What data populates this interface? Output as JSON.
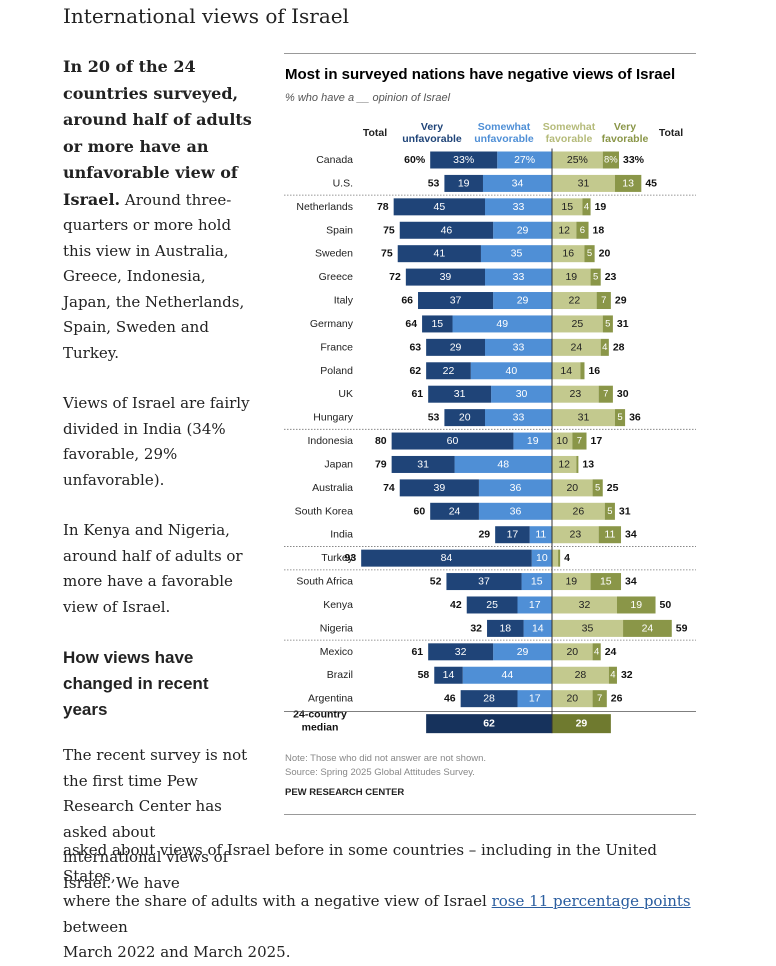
{
  "page": {
    "section_title": "International views of Israel",
    "intro_bold": "In 20 of the 24 countries surveyed, around half of adults or more have an unfavorable view of Israel.",
    "intro_rest": " Around three-quarters or more hold this view in Australia, Greece, Indonesia, Japan, the Netherlands, Spain, Sweden and Turkey.",
    "para_india": "Views of Israel are fairly divided in India (34% favorable, 29% unfavorable).",
    "para_kenya": "In Kenya and Nigeria, around half of adults or more have a favorable view of Israel.",
    "subheading": "How views have changed in recent years",
    "para_recent": "The recent survey is not the first time Pew Research Center has asked about international views of Israel. We have",
    "bottom_line1": "asked about views of Israel before in some countries – including in the United States,",
    "bottom_line2_pre": "where the share of adults with a negative view of Israel ",
    "bottom_link": "rose 11 percentage points",
    "bottom_line2_post": " between",
    "bottom_line3": "March 2022 and March 2025."
  },
  "chart_header": {
    "total_left": "Total",
    "very_unfav": "Very unfavorable",
    "somewhat_unfav": "Somewhat unfavorable",
    "somewhat_fav": "Somewhat favorable",
    "very_fav": "Very favorable",
    "total_right": "Total"
  },
  "chart_notes": {
    "note": "Note: Those who did not answer are not shown.",
    "source": "Source: Spring 2025 Global Attitudes Survey.",
    "brand": "PEW RESEARCH CENTER"
  },
  "chart_data": {
    "type": "bar",
    "orientation": "horizontal-diverging",
    "title": "Most in surveyed nations have negative views of Israel",
    "subtitle": "% who have a __ opinion of Israel",
    "colors": {
      "very_unfavorable": "#1f4478",
      "somewhat_unfavorable": "#4f8fd6",
      "somewhat_favorable": "#c3c98e",
      "very_favorable": "#8a9648",
      "median_unfav": "#16325c",
      "median_fav": "#6f7a2f"
    },
    "rows": [
      {
        "country": "Canada",
        "very_unfav": 33,
        "somewhat_unfav": 27,
        "total_unfav": 60,
        "somewhat_fav": 25,
        "very_fav": 8,
        "total_fav": 33,
        "pct": true
      },
      {
        "country": "U.S.",
        "very_unfav": 19,
        "somewhat_unfav": 34,
        "total_unfav": 53,
        "somewhat_fav": 31,
        "very_fav": 13,
        "total_fav": 45
      },
      {
        "country": "Netherlands",
        "very_unfav": 45,
        "somewhat_unfav": 33,
        "total_unfav": 78,
        "somewhat_fav": 15,
        "very_fav": 4,
        "total_fav": 19
      },
      {
        "country": "Spain",
        "very_unfav": 46,
        "somewhat_unfav": 29,
        "total_unfav": 75,
        "somewhat_fav": 12,
        "very_fav": 6,
        "total_fav": 18
      },
      {
        "country": "Sweden",
        "very_unfav": 41,
        "somewhat_unfav": 35,
        "total_unfav": 75,
        "somewhat_fav": 16,
        "very_fav": 5,
        "total_fav": 20
      },
      {
        "country": "Greece",
        "very_unfav": 39,
        "somewhat_unfav": 33,
        "total_unfav": 72,
        "somewhat_fav": 19,
        "very_fav": 5,
        "total_fav": 23
      },
      {
        "country": "Italy",
        "very_unfav": 37,
        "somewhat_unfav": 29,
        "total_unfav": 66,
        "somewhat_fav": 22,
        "very_fav": 7,
        "total_fav": 29
      },
      {
        "country": "Germany",
        "very_unfav": 15,
        "somewhat_unfav": 49,
        "total_unfav": 64,
        "somewhat_fav": 25,
        "very_fav": 5,
        "total_fav": 31
      },
      {
        "country": "France",
        "very_unfav": 29,
        "somewhat_unfav": 33,
        "total_unfav": 63,
        "somewhat_fav": 24,
        "very_fav": 4,
        "total_fav": 28
      },
      {
        "country": "Poland",
        "very_unfav": 22,
        "somewhat_unfav": 40,
        "total_unfav": 62,
        "somewhat_fav": 14,
        "very_fav": 2,
        "total_fav": 16
      },
      {
        "country": "UK",
        "very_unfav": 31,
        "somewhat_unfav": 30,
        "total_unfav": 61,
        "somewhat_fav": 23,
        "very_fav": 7,
        "total_fav": 30
      },
      {
        "country": "Hungary",
        "very_unfav": 20,
        "somewhat_unfav": 33,
        "total_unfav": 53,
        "somewhat_fav": 31,
        "very_fav": 5,
        "total_fav": 36
      },
      {
        "country": "Indonesia",
        "very_unfav": 60,
        "somewhat_unfav": 19,
        "total_unfav": 80,
        "somewhat_fav": 10,
        "very_fav": 7,
        "total_fav": 17
      },
      {
        "country": "Japan",
        "very_unfav": 31,
        "somewhat_unfav": 48,
        "total_unfav": 79,
        "somewhat_fav": 12,
        "very_fav": 1,
        "total_fav": 13
      },
      {
        "country": "Australia",
        "very_unfav": 39,
        "somewhat_unfav": 36,
        "total_unfav": 74,
        "somewhat_fav": 20,
        "very_fav": 5,
        "total_fav": 25
      },
      {
        "country": "South Korea",
        "very_unfav": 24,
        "somewhat_unfav": 36,
        "total_unfav": 60,
        "somewhat_fav": 26,
        "very_fav": 5,
        "total_fav": 31
      },
      {
        "country": "India",
        "very_unfav": 17,
        "somewhat_unfav": 11,
        "total_unfav": 29,
        "somewhat_fav": 23,
        "very_fav": 11,
        "total_fav": 34
      },
      {
        "country": "Turkey",
        "very_unfav": 84,
        "somewhat_unfav": 10,
        "total_unfav": 93,
        "somewhat_fav": 3,
        "very_fav": 1,
        "total_fav": 4
      },
      {
        "country": "South Africa",
        "very_unfav": 37,
        "somewhat_unfav": 15,
        "total_unfav": 52,
        "somewhat_fav": 19,
        "very_fav": 15,
        "total_fav": 34
      },
      {
        "country": "Kenya",
        "very_unfav": 25,
        "somewhat_unfav": 17,
        "total_unfav": 42,
        "somewhat_fav": 32,
        "very_fav": 19,
        "total_fav": 50
      },
      {
        "country": "Nigeria",
        "very_unfav": 18,
        "somewhat_unfav": 14,
        "total_unfav": 32,
        "somewhat_fav": 35,
        "very_fav": 24,
        "total_fav": 59
      },
      {
        "country": "Mexico",
        "very_unfav": 32,
        "somewhat_unfav": 29,
        "total_unfav": 61,
        "somewhat_fav": 20,
        "very_fav": 4,
        "total_fav": 24
      },
      {
        "country": "Brazil",
        "very_unfav": 14,
        "somewhat_unfav": 44,
        "total_unfav": 58,
        "somewhat_fav": 28,
        "very_fav": 4,
        "total_fav": 32
      },
      {
        "country": "Argentina",
        "very_unfav": 28,
        "somewhat_unfav": 17,
        "total_unfav": 46,
        "somewhat_fav": 20,
        "very_fav": 7,
        "total_fav": 26
      }
    ],
    "median": {
      "label": "24-country median",
      "unfav": 62,
      "fav": 29
    }
  }
}
